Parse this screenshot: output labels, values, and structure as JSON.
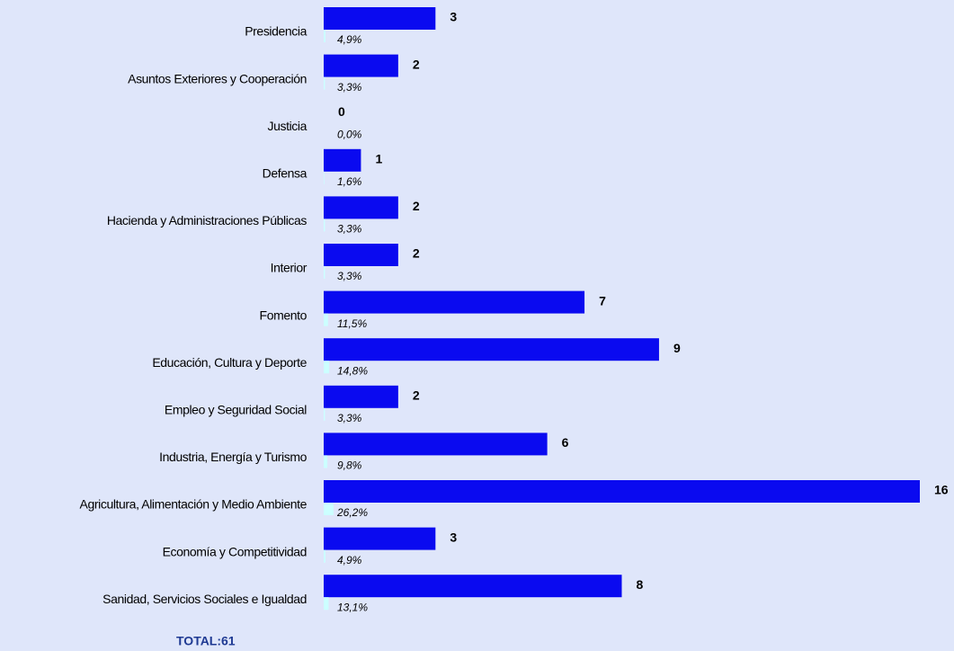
{
  "chart_data": {
    "type": "barh",
    "categories": [
      "Presidencia",
      "Asuntos Exteriores y Cooperación",
      "Justicia",
      "Defensa",
      "Hacienda y Administraciones Públicas",
      "Interior",
      "Fomento",
      "Educación, Cultura y Deporte",
      "Empleo y Seguridad Social",
      "Industria, Energía y Turismo",
      "Agricultura, Alimentación y Medio Ambiente",
      "Economía y Competitividad",
      "Sanidad, Servicios Sociales e Igualdad"
    ],
    "series": [
      {
        "color": "#0a0af0",
        "values": [
          3,
          2,
          0,
          1,
          2,
          2,
          7,
          9,
          2,
          6,
          16,
          3,
          8
        ]
      },
      {
        "color": "#ccffff",
        "axis": "x2",
        "values": [
          4.9,
          3.3,
          0.0,
          1.6,
          3.3,
          3.3,
          11.5,
          14.8,
          3.3,
          9.8,
          26.2,
          4.9,
          13.1
        ],
        "value_labels": [
          "4,9%",
          "3,3%",
          "0,0%",
          "1,6%",
          "3,3%",
          "3,3%",
          "11,5%",
          "14,8%",
          "3,3%",
          "9,8%",
          "26,2%",
          "4,9%",
          "13,1%"
        ]
      }
    ],
    "xlim": [
      0,
      16
    ],
    "x2lim": [
      0,
      1600
    ],
    "total_label": "TOTAL:",
    "total": 61
  }
}
